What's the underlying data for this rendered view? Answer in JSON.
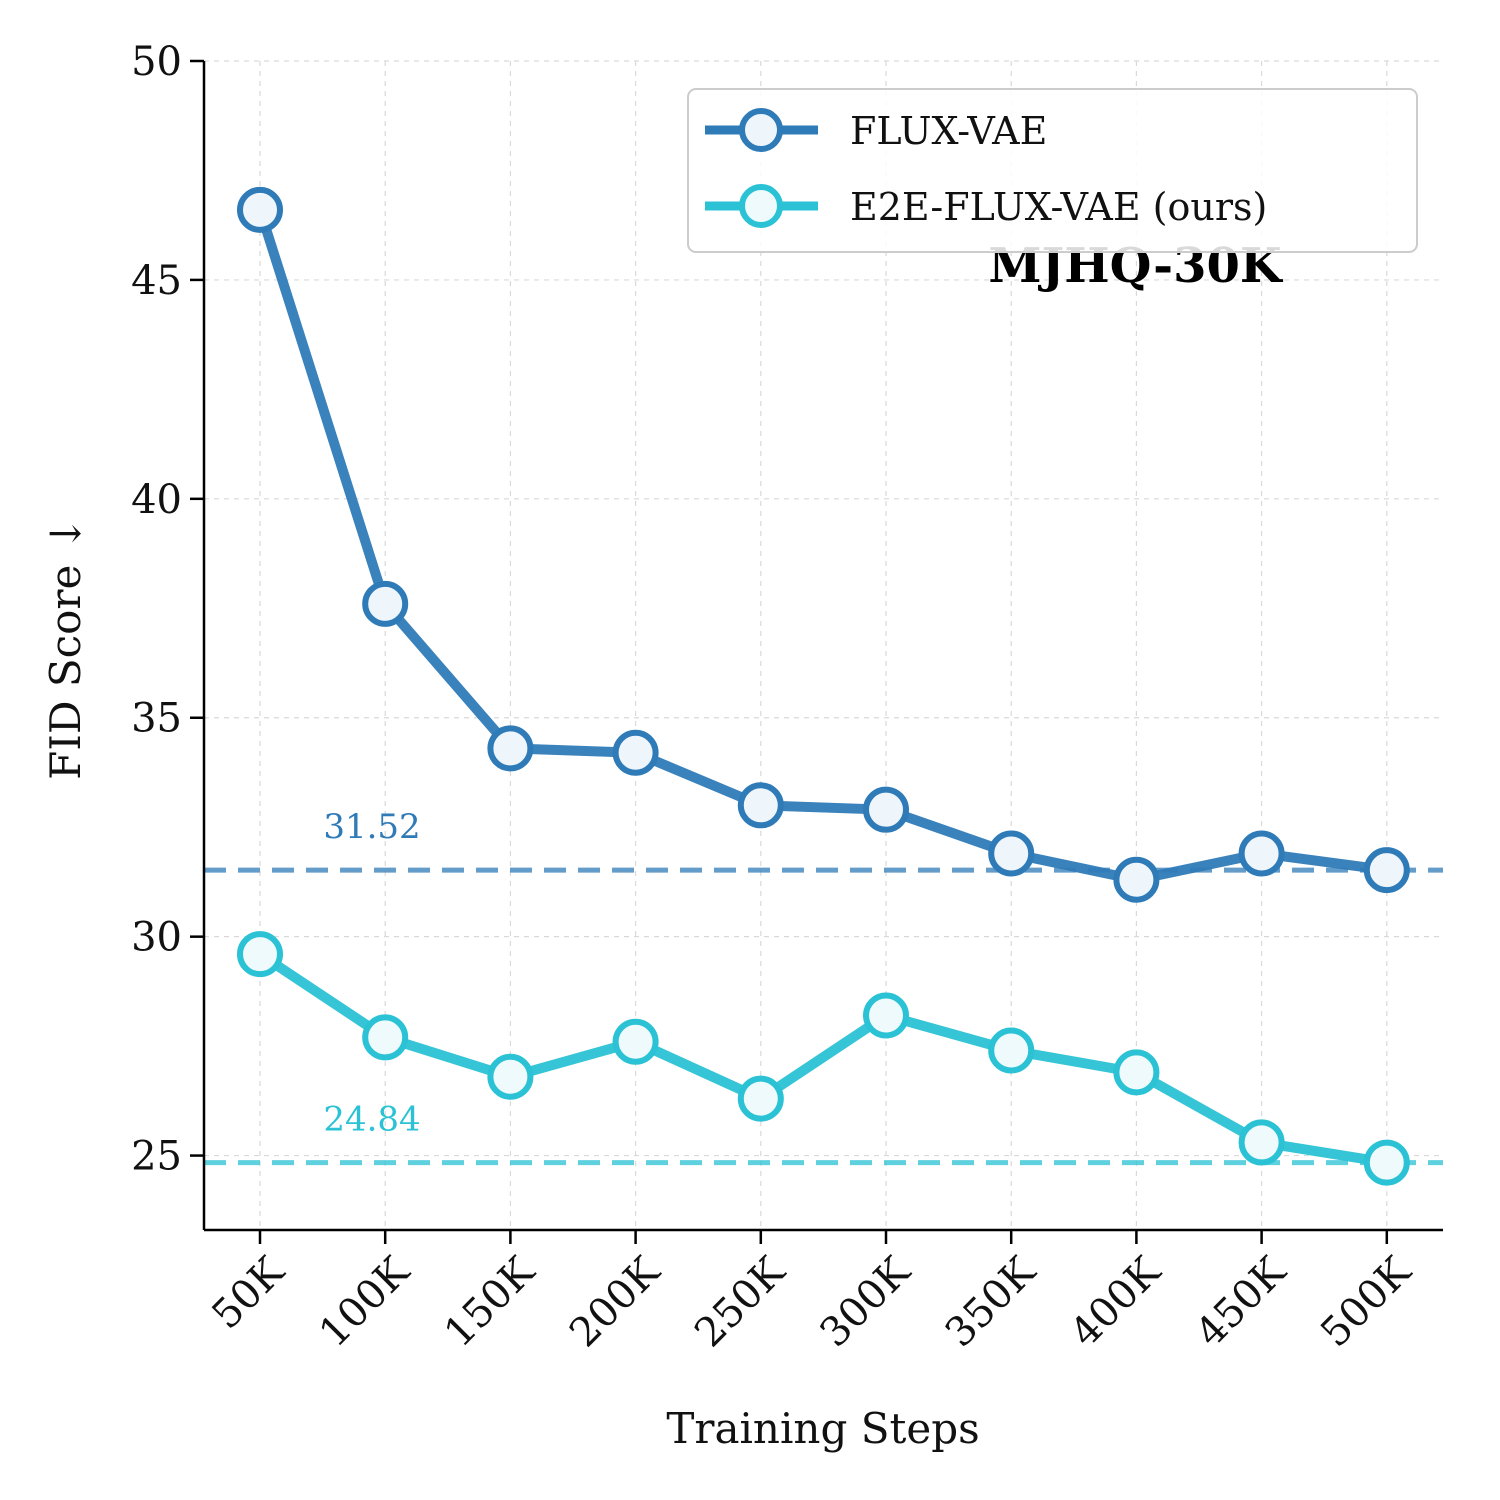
{
  "chart_data": {
    "type": "line",
    "title": "MJHQ-30K",
    "xlabel": "Training Steps",
    "ylabel": "FID Score ↓",
    "categories": [
      "50K",
      "100K",
      "150K",
      "200K",
      "250K",
      "300K",
      "350K",
      "400K",
      "450K",
      "500K"
    ],
    "ylim": [
      23.3,
      50
    ],
    "yticks": [
      25,
      30,
      35,
      40,
      45,
      50
    ],
    "grid": true,
    "legend_position": "top-right",
    "series": [
      {
        "name": "FLUX-VAE",
        "color": "#2f7bb8",
        "values": [
          46.6,
          37.6,
          34.3,
          34.2,
          33.0,
          32.9,
          31.9,
          31.3,
          31.9,
          31.52
        ]
      },
      {
        "name": "E2E-FLUX-VAE (ours)",
        "color": "#2ac2d4",
        "values": [
          29.6,
          27.7,
          26.8,
          27.6,
          26.3,
          28.2,
          27.4,
          26.9,
          25.3,
          24.84
        ]
      }
    ],
    "reference_lines": [
      {
        "label": "31.52",
        "value": 31.52,
        "color": "#2f7bb8"
      },
      {
        "label": "24.84",
        "value": 24.84,
        "color": "#2ac2d4"
      }
    ]
  }
}
